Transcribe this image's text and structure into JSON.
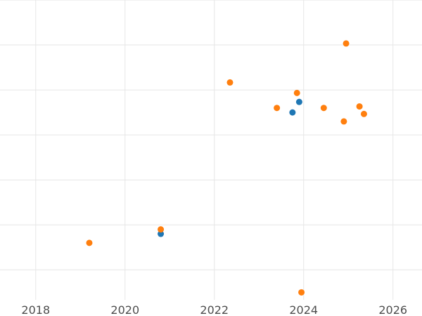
{
  "chart_data": {
    "type": "scatter",
    "title": "",
    "xlabel": "",
    "ylabel": "",
    "xlim": [
      2017.2,
      2026.65
    ],
    "ylim": [
      0,
      1
    ],
    "grid": true,
    "x_ticks": [
      "2018",
      "2020",
      "2022",
      "2024",
      "2026"
    ],
    "y_ticks": [
      0.1,
      0.25,
      0.4,
      0.55,
      0.7,
      0.85,
      1.0
    ],
    "series": [
      {
        "color": "#1f77b4",
        "points": [
          {
            "x": 2020.8,
            "y": 0.22
          },
          {
            "x": 2023.75,
            "y": 0.625
          },
          {
            "x": 2023.9,
            "y": 0.66
          }
        ]
      },
      {
        "color": "#ff7f0e",
        "points": [
          {
            "x": 2019.2,
            "y": 0.19
          },
          {
            "x": 2020.8,
            "y": 0.235
          },
          {
            "x": 2022.35,
            "y": 0.725
          },
          {
            "x": 2023.4,
            "y": 0.64
          },
          {
            "x": 2023.85,
            "y": 0.69
          },
          {
            "x": 2023.95,
            "y": 0.025
          },
          {
            "x": 2024.45,
            "y": 0.64
          },
          {
            "x": 2024.9,
            "y": 0.595
          },
          {
            "x": 2024.95,
            "y": 0.855
          },
          {
            "x": 2025.25,
            "y": 0.645
          },
          {
            "x": 2025.35,
            "y": 0.62
          }
        ]
      }
    ]
  }
}
